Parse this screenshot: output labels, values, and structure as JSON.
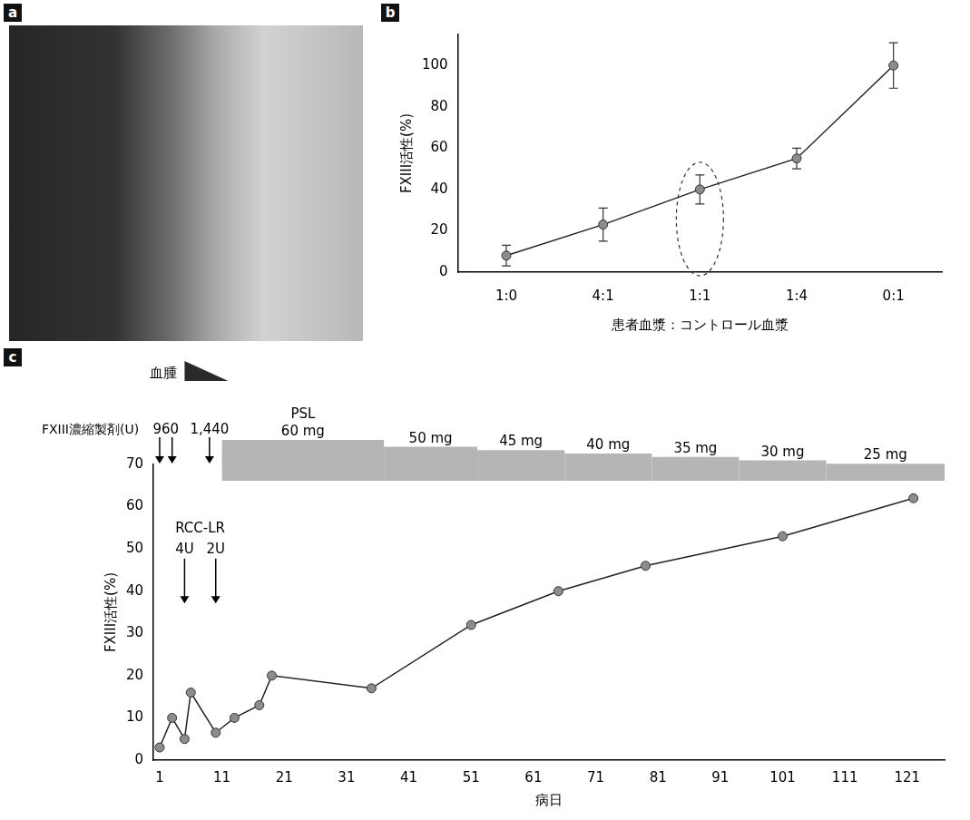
{
  "photo": {
    "panel_label": "a"
  },
  "chart_data": [
    {
      "panel_label": "b",
      "type": "line",
      "x_label": "患者血漿：コントロール血漿",
      "y_label": "FXIII活性(%)",
      "categories": [
        "1:0",
        "4:1",
        "1:1",
        "1:4",
        "0:1"
      ],
      "values": [
        8,
        23,
        40,
        55,
        100
      ],
      "errors": [
        5,
        8,
        7,
        5,
        11
      ],
      "color": "#8c8c8c",
      "marker": "circle",
      "ylim": [
        0,
        115
      ],
      "yticks": [
        0,
        20,
        40,
        60,
        80,
        100
      ],
      "grid": false
    },
    {
      "panel_label": "c",
      "type": "line",
      "x_label": "病日",
      "y_label": "FXIII活性(%)",
      "x": [
        1,
        3,
        5,
        6,
        10,
        13,
        17,
        19,
        35,
        51,
        65,
        79,
        101,
        122
      ],
      "values": [
        3,
        10,
        5,
        16,
        6.5,
        10,
        13,
        20,
        17,
        32,
        40,
        46,
        53,
        62
      ],
      "color": "#8c8c8c",
      "marker": "circle",
      "xlim": [
        0,
        127
      ],
      "xticks": [
        1,
        11,
        21,
        31,
        41,
        51,
        61,
        71,
        81,
        91,
        101,
        111,
        121
      ],
      "ylim": [
        0,
        70
      ],
      "yticks": [
        0,
        10,
        20,
        30,
        40,
        50,
        60,
        70
      ],
      "grid": false,
      "hematoma": {
        "label": "血腫",
        "start": 5,
        "end": 12
      },
      "fxiii_concentrate": {
        "label": "FXIII濃縮製剤(U)",
        "groups": [
          {
            "x": [
              1,
              3
            ],
            "dose": 960
          },
          {
            "x": [
              9
            ],
            "dose": 1440,
            "dose_label": "1,440"
          }
        ]
      },
      "psl": {
        "label": "PSL",
        "starts": [
          11,
          37,
          52,
          66,
          80,
          94,
          108
        ],
        "ends": [
          37,
          52,
          66,
          80,
          94,
          108,
          127
        ],
        "values": [
          60,
          50,
          45,
          40,
          35,
          30,
          25
        ],
        "value_labels": [
          "60 mg",
          "50 mg",
          "45 mg",
          "40 mg",
          "35 mg",
          "30 mg",
          "25 mg"
        ]
      },
      "rcc_lr": {
        "label": "RCC-LR",
        "x": [
          5,
          10
        ],
        "values": [
          4,
          2
        ],
        "value_labels": [
          "4U",
          "2U"
        ]
      }
    }
  ]
}
